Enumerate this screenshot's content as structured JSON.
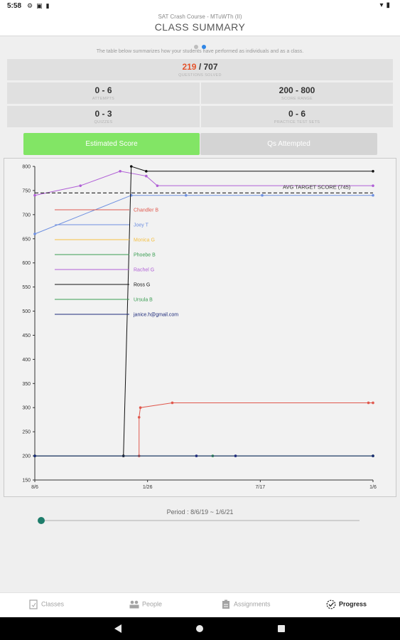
{
  "status_bar": {
    "time": "5:58",
    "left_icons": [
      "gear-icon",
      "square-icon",
      "battery-saver-icon"
    ],
    "right_icons": [
      "wifi-icon",
      "battery-icon"
    ]
  },
  "header": {
    "course": "SAT Crash Course - MTuWTh (II)",
    "title": "CLASS SUMMARY"
  },
  "pager": {
    "pages": 2,
    "active": 2
  },
  "description": "The table below summarizes how your students have performed as individuals and as a class.",
  "stats": {
    "questions": {
      "answered": "219",
      "sep": " / ",
      "total": "707",
      "label": "QUESTIONS SOLVED"
    },
    "attempts": {
      "value": "0 - 6",
      "label": "ATTEMPTS"
    },
    "score_range": {
      "value": "200 - 800",
      "label": "SCORE RANGE"
    },
    "quizzes": {
      "value": "0 - 3",
      "label": "QUIZZES"
    },
    "tests": {
      "value": "0 - 6",
      "label": "PRACTICE TEST SETS"
    }
  },
  "toggle": {
    "estimated_label": "Estimated Score",
    "attempted_label": "Qs Attempted",
    "active": "estimated"
  },
  "chart_data": {
    "type": "line",
    "ylim": [
      150,
      800
    ],
    "yticks": [
      150,
      200,
      250,
      300,
      350,
      400,
      450,
      500,
      550,
      600,
      650,
      700,
      750,
      800
    ],
    "xlim": [
      "8/6/19",
      "1/6/21"
    ],
    "xtick_labels": [
      "8/6",
      "1/26",
      "7/17",
      "1/6"
    ],
    "target": {
      "label": "AVG TARGET SCORE (745)",
      "value": 745
    },
    "series": [
      {
        "name": "Chandler B",
        "color": "#e0584d",
        "points": [
          [
            "2020-01-13",
            200
          ],
          [
            "2020-01-13",
            280
          ],
          [
            "2020-01-15",
            300
          ],
          [
            "2020-03-04",
            310
          ],
          [
            "2020-12-30",
            310
          ],
          [
            "2021-01-06",
            310
          ]
        ]
      },
      {
        "name": "Joey T",
        "color": "#6d8fe0",
        "points": [
          [
            "2019-08-06",
            660
          ],
          [
            "2020-01-01",
            740
          ],
          [
            "2020-03-25",
            740
          ],
          [
            "2020-07-20",
            740
          ],
          [
            "2021-01-06",
            740
          ]
        ]
      },
      {
        "name": "Monica G",
        "color": "#f5c043",
        "points": [
          [
            "2019-08-06",
            200
          ],
          [
            "2021-01-06",
            200
          ]
        ]
      },
      {
        "name": "Phoebe B",
        "color": "#3a9d52",
        "points": [
          [
            "2019-08-06",
            200
          ],
          [
            "2020-05-05",
            200
          ],
          [
            "2021-01-06",
            200
          ]
        ]
      },
      {
        "name": "Rachel G",
        "color": "#b05fd6",
        "points": [
          [
            "2019-08-06",
            740
          ],
          [
            "2019-10-15",
            760
          ],
          [
            "2019-12-15",
            790
          ],
          [
            "2020-01-24",
            780
          ],
          [
            "2020-02-10",
            760
          ],
          [
            "2021-01-06",
            760
          ]
        ]
      },
      {
        "name": "Ross G",
        "color": "#111111",
        "points": [
          [
            "2019-08-06",
            200
          ],
          [
            "2019-12-20",
            200
          ],
          [
            "2020-01-01",
            800
          ],
          [
            "2020-01-24",
            790
          ],
          [
            "2021-01-06",
            790
          ]
        ]
      },
      {
        "name": "Ursula B",
        "color": "#3a9d52",
        "points": [
          [
            "2019-08-06",
            200
          ],
          [
            "2021-01-06",
            200
          ]
        ]
      },
      {
        "name": "janice.h@gmail.com",
        "color": "#1d2a7a",
        "points": [
          [
            "2019-08-06",
            200
          ],
          [
            "2020-04-10",
            200
          ],
          [
            "2020-06-09",
            200
          ],
          [
            "2021-01-06",
            200
          ]
        ]
      }
    ]
  },
  "period": {
    "label": "Period : 8/6/19 ~ 1/6/21"
  },
  "bottom_nav": [
    {
      "label": "Classes",
      "icon": "classes-icon",
      "active": false
    },
    {
      "label": "People",
      "icon": "people-icon",
      "active": false
    },
    {
      "label": "Assignments",
      "icon": "assignments-icon",
      "active": false
    },
    {
      "label": "Progress",
      "icon": "progress-icon",
      "active": true
    }
  ],
  "system_nav": [
    "back-icon",
    "home-icon",
    "recents-icon"
  ]
}
